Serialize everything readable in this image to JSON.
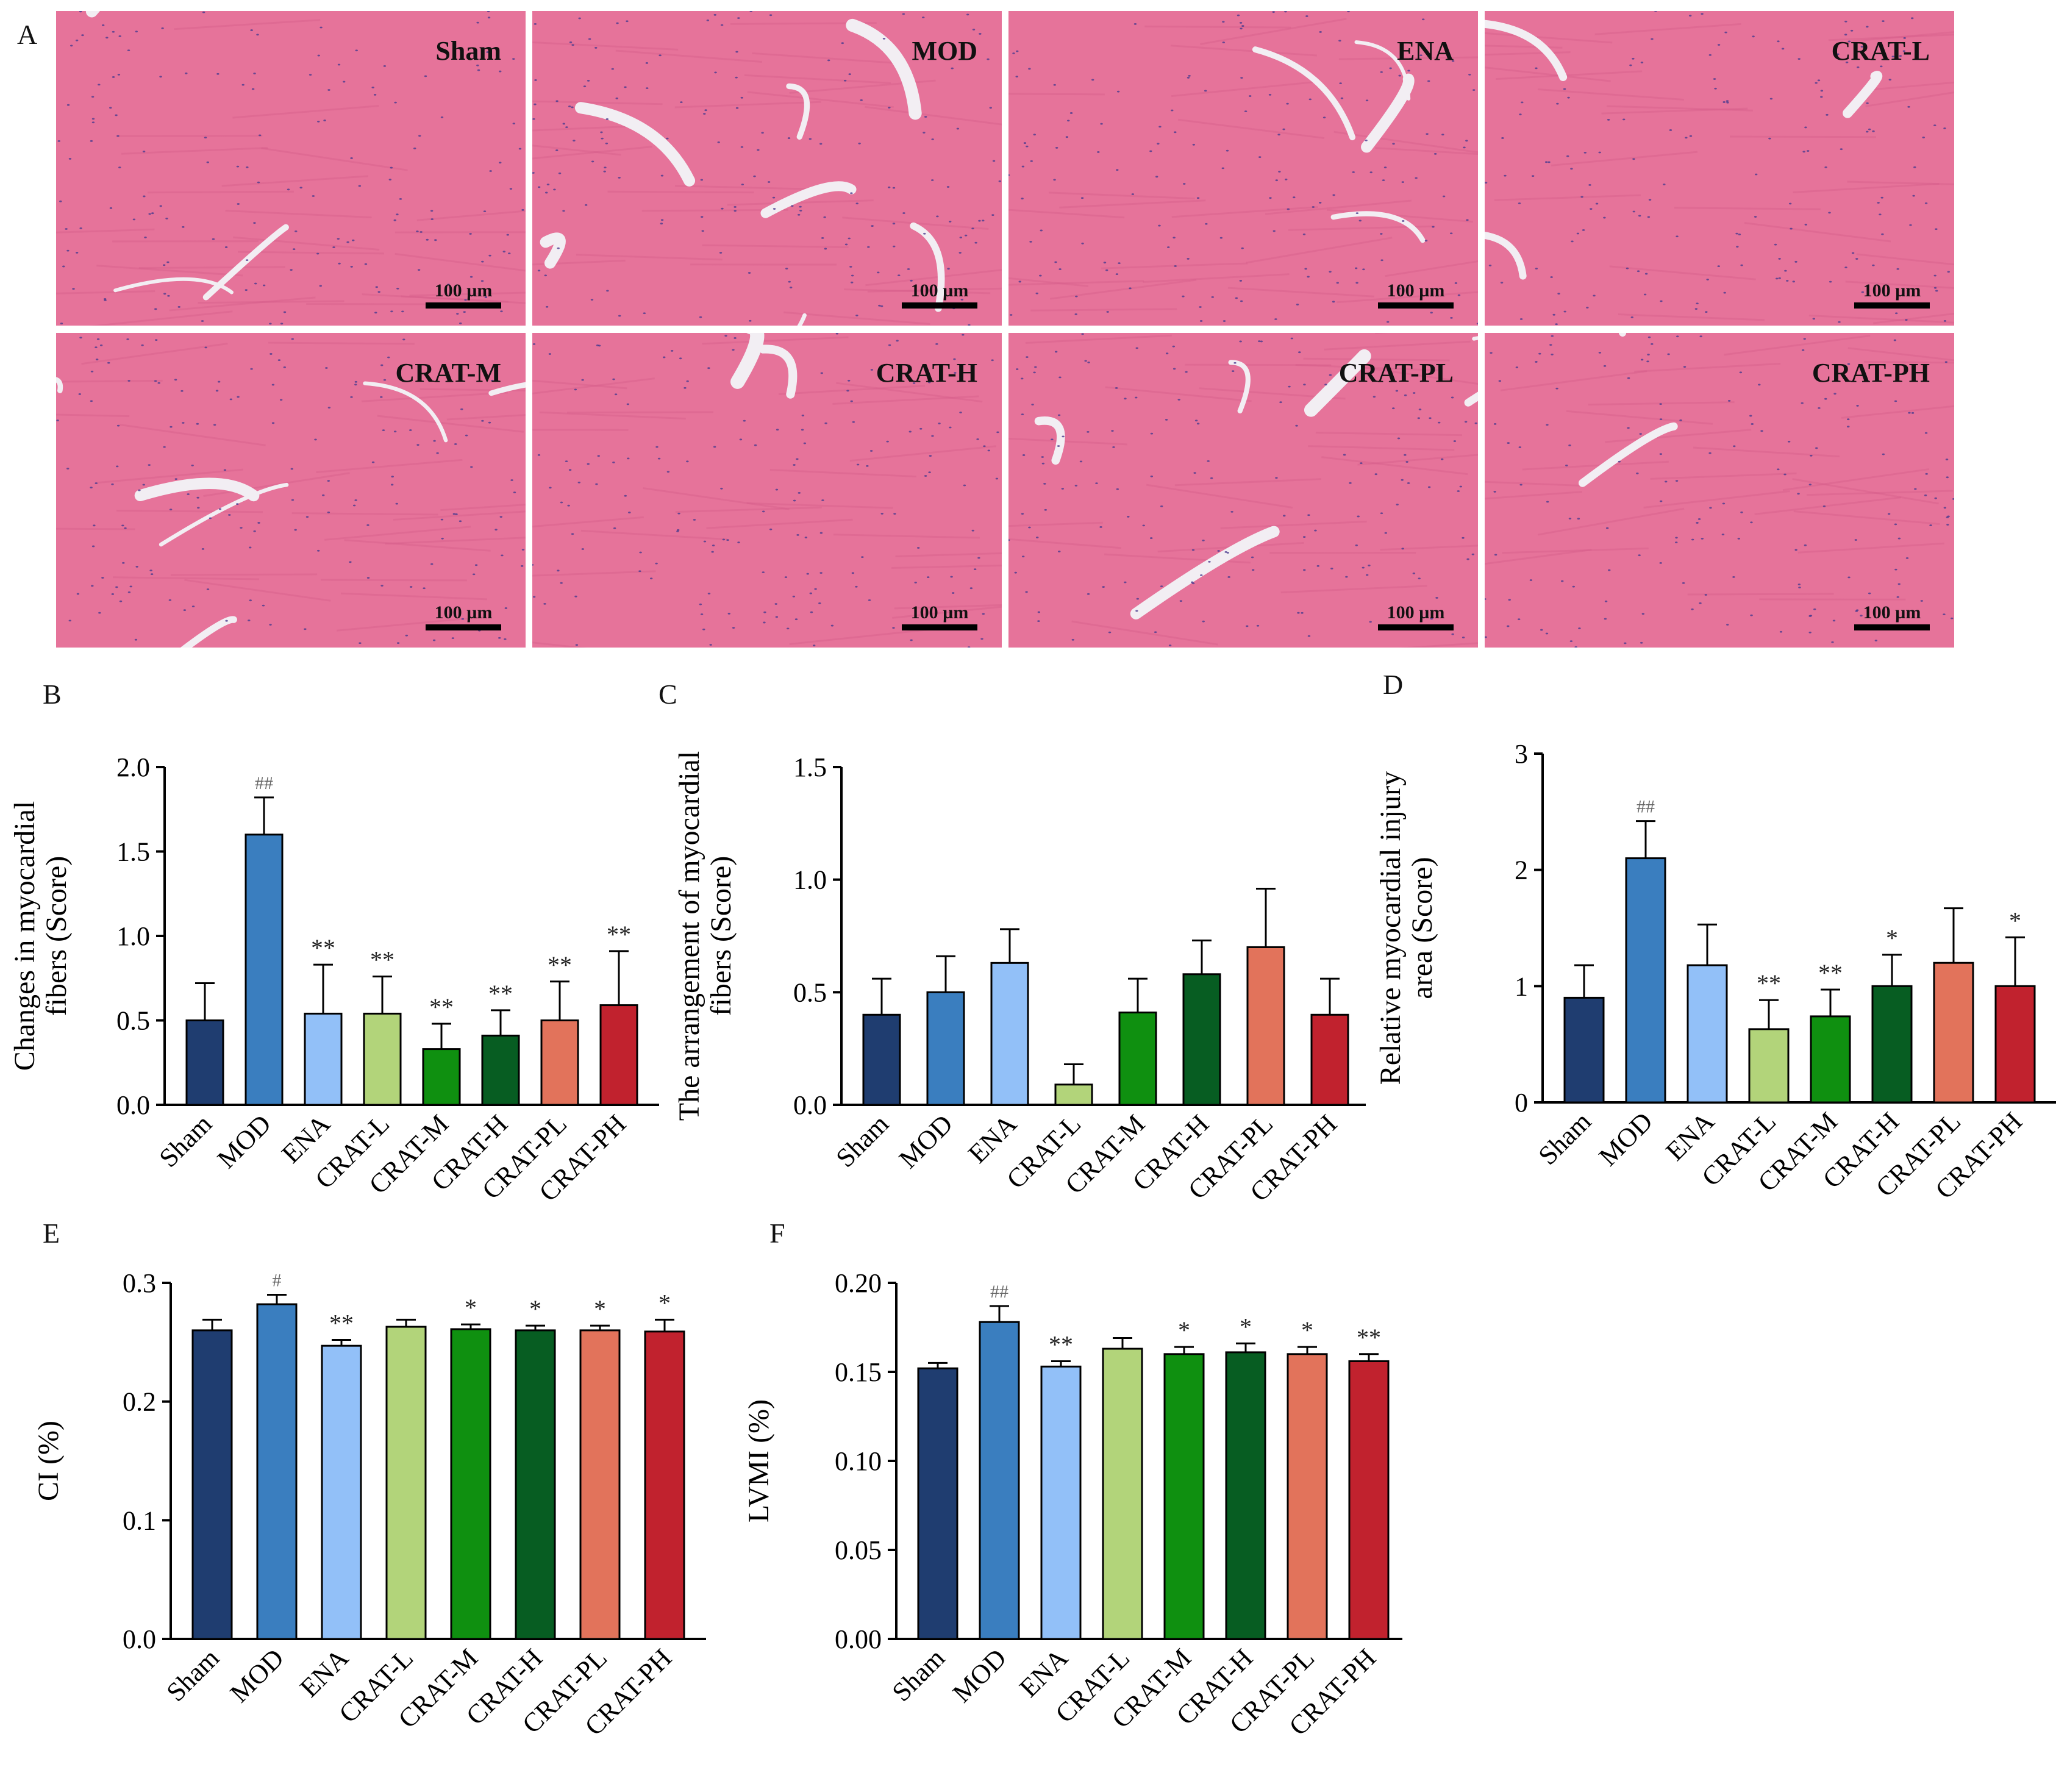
{
  "panel_letters": {
    "a": "A",
    "b": "B",
    "c": "C",
    "d": "D",
    "e": "E",
    "f": "F"
  },
  "micrographs": {
    "scale_label": "100 µm",
    "tiles": [
      {
        "label": "Sham"
      },
      {
        "label": "MOD"
      },
      {
        "label": "ENA"
      },
      {
        "label": "CRAT-L"
      },
      {
        "label": "CRAT-M"
      },
      {
        "label": "CRAT-H"
      },
      {
        "label": "CRAT-PL"
      },
      {
        "label": "CRAT-PH"
      }
    ]
  },
  "colors": {
    "Sham": "#1f3d70",
    "MOD": "#3a7ebf",
    "ENA": "#92c0f8",
    "CRAT-L": "#b2d47a",
    "CRAT-M": "#0f9010",
    "CRAT-H": "#075d22",
    "CRAT-PL": "#e2735b",
    "CRAT-PH": "#c1222e",
    "tissue": "#e6739a",
    "tissue_dark": "#d45a88",
    "gap": "#f2eef3",
    "nuclei": "#4a3b8f"
  },
  "chart_data": [
    {
      "panel": "B",
      "type": "bar",
      "categories": [
        "Sham",
        "MOD",
        "ENA",
        "CRAT-L",
        "CRAT-M",
        "CRAT-H",
        "CRAT-PL",
        "CRAT-PH"
      ],
      "values": [
        0.5,
        1.6,
        0.54,
        0.54,
        0.33,
        0.41,
        0.5,
        0.59
      ],
      "errors": [
        0.22,
        0.22,
        0.29,
        0.22,
        0.15,
        0.15,
        0.23,
        0.32
      ],
      "annotations": [
        "",
        "##",
        "**",
        "**",
        "**",
        "**",
        "**",
        "**"
      ],
      "ylabel": "Changes in myocardial fibers (Score)",
      "ylabel_lines": [
        "Changes in myocardial",
        "fibers (Score)"
      ],
      "ylim": [
        0,
        2.0
      ],
      "yticks": [
        "0.0",
        "0.5",
        "1.0",
        "1.5",
        "2.0"
      ],
      "ytick_values": [
        0,
        0.5,
        1.0,
        1.5,
        2.0
      ]
    },
    {
      "panel": "C",
      "type": "bar",
      "categories": [
        "Sham",
        "MOD",
        "ENA",
        "CRAT-L",
        "CRAT-M",
        "CRAT-H",
        "CRAT-PL",
        "CRAT-PH"
      ],
      "values": [
        0.4,
        0.5,
        0.63,
        0.09,
        0.41,
        0.58,
        0.7,
        0.4
      ],
      "errors": [
        0.16,
        0.16,
        0.15,
        0.09,
        0.15,
        0.15,
        0.26,
        0.16
      ],
      "annotations": [
        "",
        "",
        "",
        "",
        "",
        "",
        "",
        ""
      ],
      "ylabel": "The arrangement of myocardial fibers (Score)",
      "ylabel_lines": [
        "The arrangement of myocardial",
        "fibers (Score)"
      ],
      "ylim": [
        0,
        1.5
      ],
      "yticks": [
        "0.0",
        "0.5",
        "1.0",
        "1.5"
      ],
      "ytick_values": [
        0,
        0.5,
        1.0,
        1.5
      ]
    },
    {
      "panel": "D",
      "type": "bar",
      "categories": [
        "Sham",
        "MOD",
        "ENA",
        "CRAT-L",
        "CRAT-M",
        "CRAT-H",
        "CRAT-PL",
        "CRAT-PH"
      ],
      "values": [
        0.9,
        2.1,
        1.18,
        0.63,
        0.74,
        1.0,
        1.2,
        1.0
      ],
      "errors": [
        0.28,
        0.32,
        0.35,
        0.25,
        0.23,
        0.27,
        0.47,
        0.42
      ],
      "annotations": [
        "",
        "##",
        "",
        "**",
        "**",
        "*",
        "",
        "*"
      ],
      "ylabel": "Relative myocardial injury area (Score)",
      "ylabel_lines": [
        "Relative myocardial injury",
        "area (Score)"
      ],
      "ylim": [
        0,
        3
      ],
      "yticks": [
        "0",
        "1",
        "2",
        "3"
      ],
      "ytick_values": [
        0,
        1,
        2,
        3
      ]
    },
    {
      "panel": "E",
      "type": "bar",
      "categories": [
        "Sham",
        "MOD",
        "ENA",
        "CRAT-L",
        "CRAT-M",
        "CRAT-H",
        "CRAT-PL",
        "CRAT-PH"
      ],
      "values": [
        0.26,
        0.282,
        0.247,
        0.263,
        0.261,
        0.26,
        0.26,
        0.259
      ],
      "errors": [
        0.009,
        0.008,
        0.005,
        0.006,
        0.004,
        0.004,
        0.004,
        0.01
      ],
      "annotations": [
        "",
        "#",
        "**",
        "",
        "*",
        "*",
        "*",
        "*"
      ],
      "ylabel": "CI (%)",
      "ylabel_lines": [
        "CI (%)"
      ],
      "ylim": [
        0,
        0.3
      ],
      "yticks": [
        "0.0",
        "0.1",
        "0.2",
        "0.3"
      ],
      "ytick_values": [
        0,
        0.1,
        0.2,
        0.3
      ]
    },
    {
      "panel": "F",
      "type": "bar",
      "categories": [
        "Sham",
        "MOD",
        "ENA",
        "CRAT-L",
        "CRAT-M",
        "CRAT-H",
        "CRAT-PL",
        "CRAT-PH"
      ],
      "values": [
        0.152,
        0.178,
        0.153,
        0.163,
        0.16,
        0.161,
        0.16,
        0.156
      ],
      "errors": [
        0.003,
        0.009,
        0.003,
        0.006,
        0.004,
        0.005,
        0.004,
        0.004
      ],
      "annotations": [
        "",
        "##",
        "**",
        "",
        "*",
        "*",
        "*",
        "**"
      ],
      "ylabel": "LVMI (%)",
      "ylabel_lines": [
        "LVMI (%)"
      ],
      "ylim": [
        0,
        0.2
      ],
      "yticks": [
        "0.00",
        "0.05",
        "0.10",
        "0.15",
        "0.20"
      ],
      "ytick_values": [
        0,
        0.05,
        0.1,
        0.15,
        0.2
      ]
    }
  ]
}
